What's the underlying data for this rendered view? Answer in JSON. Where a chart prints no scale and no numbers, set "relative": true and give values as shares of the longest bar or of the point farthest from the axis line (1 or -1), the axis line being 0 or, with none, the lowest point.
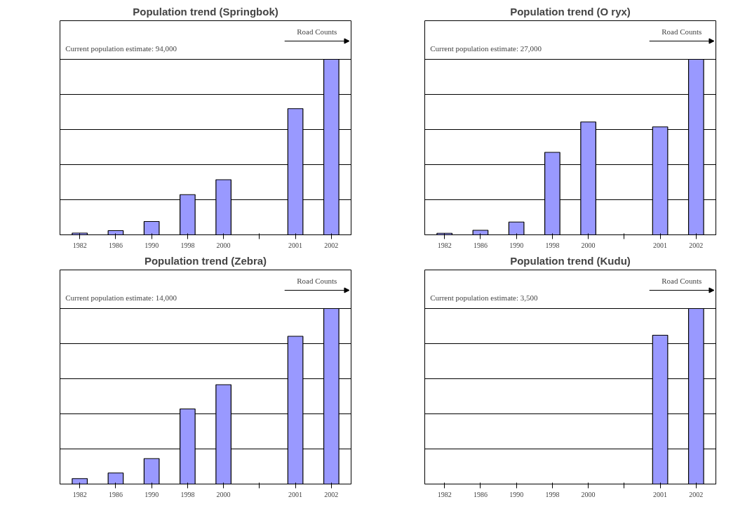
{
  "chart_data": [
    {
      "type": "bar",
      "title": "Population trend (Springbok)",
      "relative": true,
      "grid": "y",
      "categories": [
        "1982",
        "1986",
        "1990",
        "1998",
        "2000",
        null,
        "2001",
        "2002"
      ],
      "color": "#9999ff",
      "values": [
        0.01,
        0.024,
        0.076,
        0.229,
        0.314,
        null,
        0.719,
        1
      ],
      "annotations": [
        "Current population estimate:  94,000",
        "Road Counts"
      ]
    },
    {
      "type": "bar",
      "title": "Population trend (O ryx)",
      "relative": true,
      "grid": "y",
      "categories": [
        "1982",
        "1986",
        "1990",
        "1998",
        "2000",
        null,
        "2001",
        "2002"
      ],
      "color": "#9999ff",
      "values": [
        0.009,
        0.026,
        0.073,
        0.47,
        0.643,
        null,
        0.615,
        1
      ],
      "annotations": [
        "Current population estimate:  27,000",
        "Road Counts"
      ]
    },
    {
      "type": "bar",
      "title": "Population trend (Zebra)",
      "relative": true,
      "grid": "y",
      "categories": [
        "1982",
        "1986",
        "1990",
        "1998",
        "2000",
        null,
        "2001",
        "2002"
      ],
      "color": "#9999ff",
      "values": [
        0.031,
        0.063,
        0.145,
        0.428,
        0.566,
        null,
        0.842,
        1
      ],
      "annotations": [
        "Current population estimate:  14,000",
        "Road Counts"
      ]
    },
    {
      "type": "bar",
      "title": "Population trend (Kudu)",
      "relative": true,
      "grid": "y",
      "categories": [
        "1982",
        "1986",
        "1990",
        "1998",
        "2000",
        null,
        "2001",
        "2002"
      ],
      "color": "#9999ff",
      "values": [
        null,
        null,
        null,
        null,
        null,
        null,
        0.848,
        1
      ],
      "annotations": [
        "Current population estimate:  3,500",
        "Road Counts"
      ]
    }
  ]
}
